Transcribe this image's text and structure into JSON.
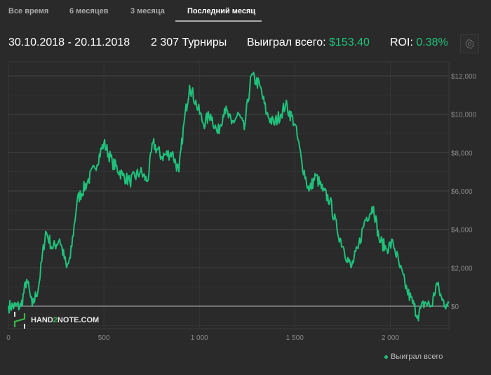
{
  "tabs": [
    {
      "label": "Все время",
      "active": false
    },
    {
      "label": "6 месяцев",
      "active": false
    },
    {
      "label": "3 месяца",
      "active": false
    },
    {
      "label": "Последний месяц",
      "active": true
    }
  ],
  "stats": {
    "date_range": "30.10.2018 - 20.11.2018",
    "tournaments": "2 307 Турниры",
    "won_label": "Выиграл всего:",
    "won_value": "$153.40",
    "roi_label": "ROI:",
    "roi_value": "0.38%"
  },
  "logo": {
    "text_a": "HAND",
    "text_b": "2",
    "text_c": "NOTE.COM"
  },
  "colors": {
    "accent": "#1fc17b",
    "background": "#2a2a2a"
  },
  "chart_data": {
    "type": "line",
    "title": "",
    "xlabel": "",
    "ylabel": "",
    "xlim": [
      0,
      2307
    ],
    "ylim": [
      -1170,
      12730
    ],
    "x_ticks": [
      0,
      500,
      1000,
      1500,
      2000
    ],
    "x_tick_labels": [
      "0",
      "500",
      "1 000",
      "1 500",
      "2 000"
    ],
    "y_ticks": [
      0,
      2000,
      4000,
      6000,
      8000,
      10000,
      12000
    ],
    "y_tick_labels": [
      "$0",
      "$2,000",
      "$4,000",
      "$6,000",
      "$8,000",
      "$10,000",
      "$12,000"
    ],
    "grid": true,
    "legend_position": "bottom-right",
    "series": [
      {
        "name": "Выиграл всего",
        "color": "#1fc17b",
        "x": [
          0,
          66,
          96,
          125,
          158,
          195,
          232,
          268,
          305,
          324,
          360,
          415,
          452,
          500,
          544,
          599,
          636,
          691,
          728,
          757,
          801,
          857,
          893,
          919,
          949,
          985,
          1022,
          1059,
          1096,
          1132,
          1169,
          1206,
          1235,
          1272,
          1316,
          1353,
          1390,
          1426,
          1452,
          1500,
          1537,
          1574,
          1610,
          1647,
          1684,
          1721,
          1757,
          1794,
          1831,
          1868,
          1912,
          1941,
          1978,
          2015,
          2051,
          2088,
          2125,
          2143,
          2180,
          2217,
          2243,
          2272,
          2294,
          2307
        ],
        "y": [
          0,
          0,
          1400,
          0,
          1000,
          3900,
          3000,
          3500,
          2000,
          2500,
          5500,
          6500,
          7200,
          8500,
          7500,
          6800,
          6500,
          7000,
          6500,
          8500,
          7800,
          8000,
          7000,
          9500,
          11500,
          10500,
          9500,
          10000,
          9000,
          10300,
          9500,
          10000,
          9200,
          12000,
          11500,
          10000,
          9500,
          10000,
          10500,
          9500,
          7500,
          6000,
          6800,
          6000,
          5500,
          4000,
          3000,
          2000,
          3000,
          4500,
          5200,
          3500,
          3000,
          3300,
          2000,
          800,
          0,
          -500,
          200,
          0,
          1200,
          300,
          100,
          153
        ]
      }
    ]
  }
}
